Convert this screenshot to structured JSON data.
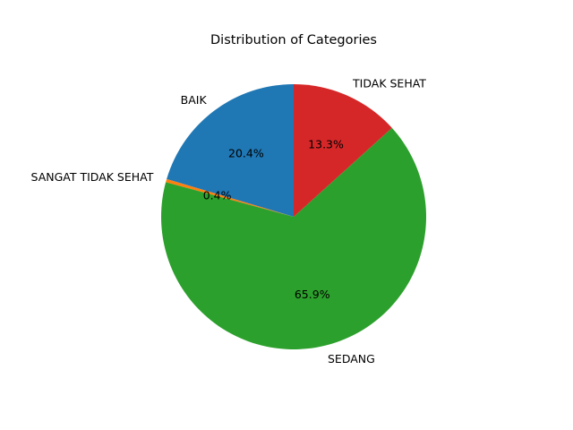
{
  "chart_data": {
    "type": "pie",
    "title": "Distribution of Categories",
    "start_angle_deg": 90,
    "direction": "counterclockwise",
    "slices": [
      {
        "label": "BAIK",
        "percent_label": "20.4%",
        "value": 20.4,
        "color": "#1f77b4"
      },
      {
        "label": "SANGAT TIDAK SEHAT",
        "percent_label": "0.4%",
        "value": 0.4,
        "color": "#ff7f0e"
      },
      {
        "label": "SEDANG",
        "percent_label": "65.9%",
        "value": 65.9,
        "color": "#2ca02c"
      },
      {
        "label": "TIDAK SEHAT",
        "percent_label": "13.3%",
        "value": 13.3,
        "color": "#d62728"
      }
    ]
  }
}
